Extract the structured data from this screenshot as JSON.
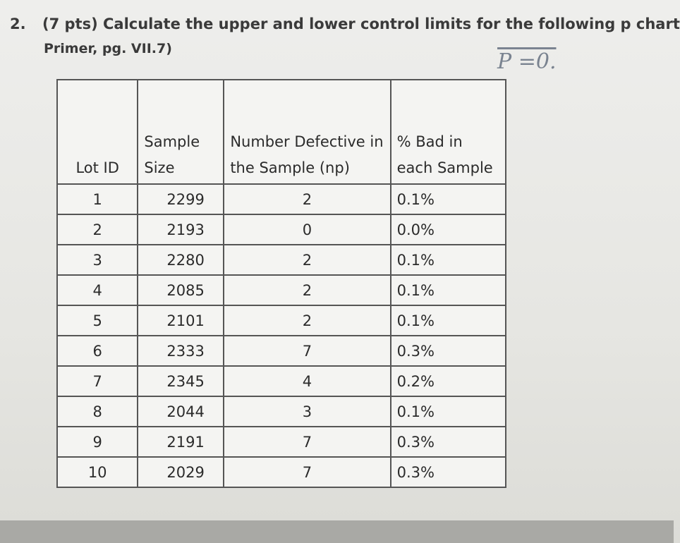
{
  "question": {
    "number": "2.",
    "text": "(7 pts) Calculate the upper and lower control limits for the following p chart",
    "source": "Primer, pg. VII.7)",
    "handwritten_note": "P =0."
  },
  "table": {
    "headers": [
      "Lot ID",
      "Sample Size",
      "Number Defective in the Sample (np)",
      "% Bad in each Sample"
    ],
    "rows": [
      [
        1,
        2299,
        2,
        "0.1%"
      ],
      [
        2,
        2193,
        0,
        "0.0%"
      ],
      [
        3,
        2280,
        2,
        "0.1%"
      ],
      [
        4,
        2085,
        2,
        "0.1%"
      ],
      [
        5,
        2101,
        2,
        "0.1%"
      ],
      [
        6,
        2333,
        7,
        "0.3%"
      ],
      [
        7,
        2345,
        4,
        "0.2%"
      ],
      [
        8,
        2044,
        3,
        "0.1%"
      ],
      [
        9,
        2191,
        7,
        "0.3%"
      ],
      [
        10,
        2029,
        7,
        "0.3%"
      ]
    ]
  }
}
